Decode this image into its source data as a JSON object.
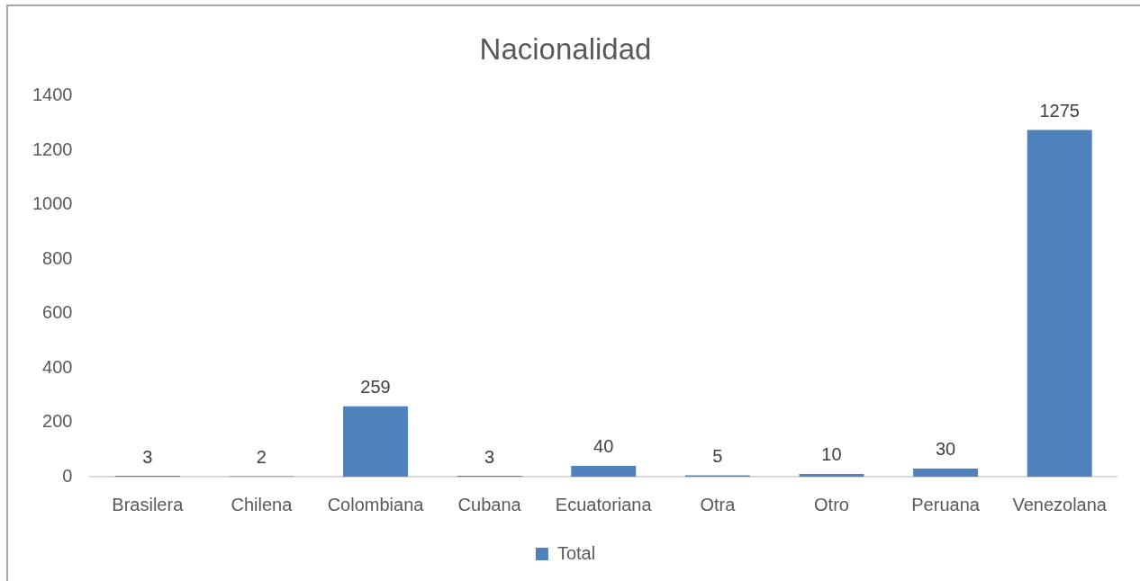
{
  "chart_data": {
    "type": "bar",
    "title": "Nacionalidad",
    "categories": [
      "Brasilera",
      "Chilena",
      "Colombiana",
      "Cubana",
      "Ecuatoriana",
      "Otra",
      "Otro",
      "Peruana",
      "Venezolana"
    ],
    "series": [
      {
        "name": "Total",
        "color": "#4f81bd",
        "values": [
          3,
          2,
          259,
          3,
          40,
          5,
          10,
          30,
          1275
        ]
      }
    ],
    "ylim": [
      0,
      1400
    ],
    "yticks": [
      0,
      200,
      400,
      600,
      800,
      1000,
      1200,
      1400
    ],
    "legend": "bottom",
    "data_labels": true
  }
}
